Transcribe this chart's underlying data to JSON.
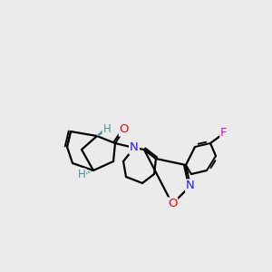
{
  "bg_color": "#ebebeb",
  "atom_colors": {
    "O": "#ff0000",
    "N": "#1a1aff",
    "F": "#ff00cc",
    "H": "#4a9090"
  },
  "bond_lw": 1.6,
  "font_size": 9.5
}
